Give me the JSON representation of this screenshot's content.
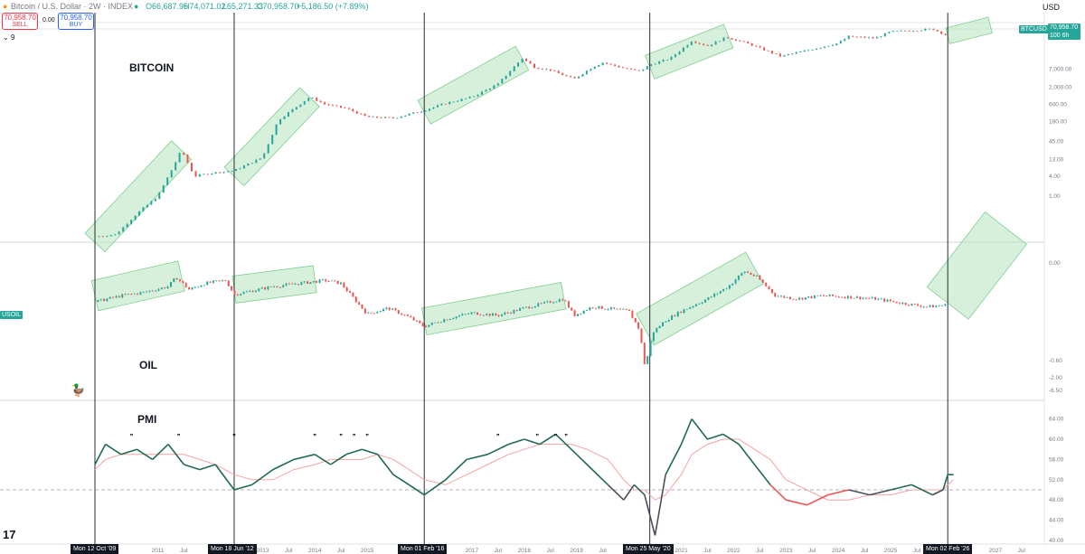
{
  "header": {
    "symbol": "Bitcoin / U.S. Dollar · 2W · INDEX",
    "open": "O66,687.96",
    "high": "H74,071.02",
    "low": "L65,271.33",
    "close": "C70,958.70",
    "change": "+5,186.50 (+7.89%)",
    "sell_price": "70,958.70",
    "sell_label": "SELL",
    "spread": "0.00",
    "buy_price": "70,958.70",
    "buy_label": "BUY",
    "indicator_count": "9",
    "currency": "USD"
  },
  "tags": {
    "btc_price": "70,958.70",
    "btc_countdown": "100 6h",
    "btc_symbol": "BTCUSD",
    "oil_symbol": "USOIL"
  },
  "panel_labels": {
    "bitcoin": "BITCOIN",
    "oil": "OIL",
    "pmi": "PMI"
  },
  "vertical_markers": [
    "Mon 12 Oct '09",
    "Mon 18 Jun '12",
    "Mon 01 Feb '16",
    "Mon 25 May '20",
    "Mon 02 Feb '26"
  ],
  "time_axis": {
    "ticks": [
      {
        "label": "2011",
        "date": 2011.0
      },
      {
        "label": "Jul",
        "date": 2011.5
      },
      {
        "label": "2013",
        "date": 2013.0
      },
      {
        "label": "Jul",
        "date": 2013.5
      },
      {
        "label": "2014",
        "date": 2014.0
      },
      {
        "label": "Jul",
        "date": 2014.5
      },
      {
        "label": "2015",
        "date": 2015.0
      },
      {
        "label": "2017",
        "date": 2017.0
      },
      {
        "label": "Jul",
        "date": 2017.5
      },
      {
        "label": "2018",
        "date": 2018.0
      },
      {
        "label": "Jul",
        "date": 2018.5
      },
      {
        "label": "2019",
        "date": 2019.0
      },
      {
        "label": "Jul",
        "date": 2019.5
      },
      {
        "label": "2021",
        "date": 2021.0
      },
      {
        "label": "Jul",
        "date": 2021.5
      },
      {
        "label": "2022",
        "date": 2022.0
      },
      {
        "label": "Jul",
        "date": 2022.5
      },
      {
        "label": "2023",
        "date": 2023.0
      },
      {
        "label": "Jul",
        "date": 2023.5
      },
      {
        "label": "2024",
        "date": 2024.0
      },
      {
        "label": "Jul",
        "date": 2024.5
      },
      {
        "label": "2025",
        "date": 2025.0
      },
      {
        "label": "Jul",
        "date": 2025.5
      },
      {
        "label": "2027",
        "date": 2027.0
      },
      {
        "label": "Jul",
        "date": 2027.5
      }
    ]
  },
  "colors": {
    "up": "#26a69a",
    "down": "#ef5350",
    "pmi_line": "#1e6b52",
    "pmi_ma": "#f4a3a3",
    "channel": "#b5e3bd"
  },
  "chart_data": [
    {
      "type": "line",
      "panel": "BITCOIN",
      "scale": "log",
      "y_ticks": [
        "70,958.70",
        "7,000.00",
        "2,000.00",
        "600.00",
        "180.00",
        "45.00",
        "13.00",
        "4.00",
        "1.00"
      ],
      "x": [
        2009.8,
        2010.2,
        2010.6,
        2011.0,
        2011.3,
        2011.45,
        2011.7,
        2012.0,
        2012.46,
        2013.0,
        2013.3,
        2013.9,
        2014.2,
        2014.6,
        2015.0,
        2015.5,
        2016.09,
        2016.5,
        2017.0,
        2017.5,
        2017.96,
        2018.2,
        2018.5,
        2018.95,
        2019.3,
        2019.5,
        2019.9,
        2020.2,
        2020.4,
        2020.8,
        2021.2,
        2021.5,
        2021.86,
        2022.3,
        2022.9,
        2023.5,
        2024.0,
        2024.2,
        2024.7,
        2025.0,
        2025.5,
        2025.8,
        2026.09
      ],
      "values": [
        0.06,
        0.07,
        0.3,
        1.0,
        8,
        25,
        4,
        5,
        6,
        15,
        200,
        1000,
        600,
        450,
        250,
        230,
        400,
        650,
        1000,
        2500,
        15000,
        8000,
        6500,
        3500,
        8000,
        11000,
        7500,
        6000,
        9500,
        15000,
        50000,
        35000,
        65000,
        40000,
        17000,
        28000,
        43000,
        68000,
        60000,
        95000,
        105000,
        115000,
        70958.7
      ]
    },
    {
      "type": "line",
      "panel": "OIL",
      "y_ticks": [
        "0.00",
        "-0.60",
        "-2.00",
        "-6.50"
      ],
      "x": [
        2009.8,
        2010.3,
        2010.7,
        2011.2,
        2011.35,
        2011.6,
        2011.9,
        2012.3,
        2012.46,
        2012.8,
        2013.2,
        2013.7,
        2014.2,
        2014.5,
        2015.0,
        2015.4,
        2015.8,
        2016.09,
        2016.5,
        2017.0,
        2017.5,
        2018.0,
        2018.75,
        2018.95,
        2019.3,
        2019.7,
        2020.0,
        2020.2,
        2020.31,
        2020.45,
        2020.7,
        2021.0,
        2021.5,
        2021.9,
        2022.2,
        2022.45,
        2022.8,
        2023.2,
        2023.7,
        2024.2,
        2024.7,
        2025.2,
        2025.7,
        2026.09
      ],
      "values": [
        70,
        80,
        85,
        95,
        110,
        90,
        100,
        105,
        82,
        88,
        95,
        100,
        105,
        100,
        50,
        60,
        45,
        30,
        42,
        52,
        48,
        60,
        75,
        48,
        62,
        58,
        55,
        25,
        -37,
        20,
        40,
        55,
        75,
        95,
        120,
        110,
        80,
        75,
        80,
        78,
        75,
        68,
        62,
        65
      ]
    },
    {
      "type": "line",
      "panel": "PMI",
      "ylim": [
        40,
        66
      ],
      "y_ticks": [
        "64.00",
        "60.00",
        "56.00",
        "52.00",
        "48.00",
        "44.00",
        "40.00"
      ],
      "reference_line": 50,
      "x": [
        2009.8,
        2010.0,
        2010.3,
        2010.6,
        2010.9,
        2011.2,
        2011.5,
        2011.8,
        2012.1,
        2012.46,
        2012.8,
        2013.2,
        2013.6,
        2014.0,
        2014.3,
        2014.6,
        2014.9,
        2015.2,
        2015.5,
        2015.8,
        2016.09,
        2016.5,
        2016.9,
        2017.3,
        2017.7,
        2018.0,
        2018.3,
        2018.6,
        2018.9,
        2019.2,
        2019.6,
        2019.9,
        2020.1,
        2020.3,
        2020.5,
        2020.7,
        2021.0,
        2021.2,
        2021.5,
        2021.8,
        2022.1,
        2022.4,
        2022.7,
        2023.0,
        2023.4,
        2023.8,
        2024.2,
        2024.6,
        2025.0,
        2025.4,
        2025.8,
        2026.0,
        2026.09,
        2026.2
      ],
      "values": [
        55,
        59,
        57,
        58,
        56,
        59,
        55,
        54,
        55,
        50,
        51,
        54,
        56,
        57,
        55,
        57,
        58,
        57,
        53,
        51,
        49,
        52,
        56,
        57,
        59,
        60,
        59,
        61,
        58,
        55,
        51,
        48,
        51,
        49,
        41,
        53,
        59,
        64,
        60,
        61,
        59,
        55,
        51,
        48,
        47,
        49,
        50,
        49,
        50,
        51,
        49,
        50,
        53,
        53
      ],
      "ma_values": [
        54,
        56,
        57,
        57,
        57,
        57,
        57,
        56,
        55,
        53,
        52,
        52,
        54,
        55,
        56,
        56,
        56,
        57,
        56,
        54,
        52,
        51,
        53,
        55,
        57,
        58,
        59,
        59,
        59,
        58,
        56,
        52,
        50,
        50,
        48,
        49,
        53,
        57,
        59,
        60,
        60,
        58,
        56,
        52,
        50,
        48,
        48,
        49,
        49,
        50,
        50,
        50,
        51,
        52
      ]
    }
  ]
}
